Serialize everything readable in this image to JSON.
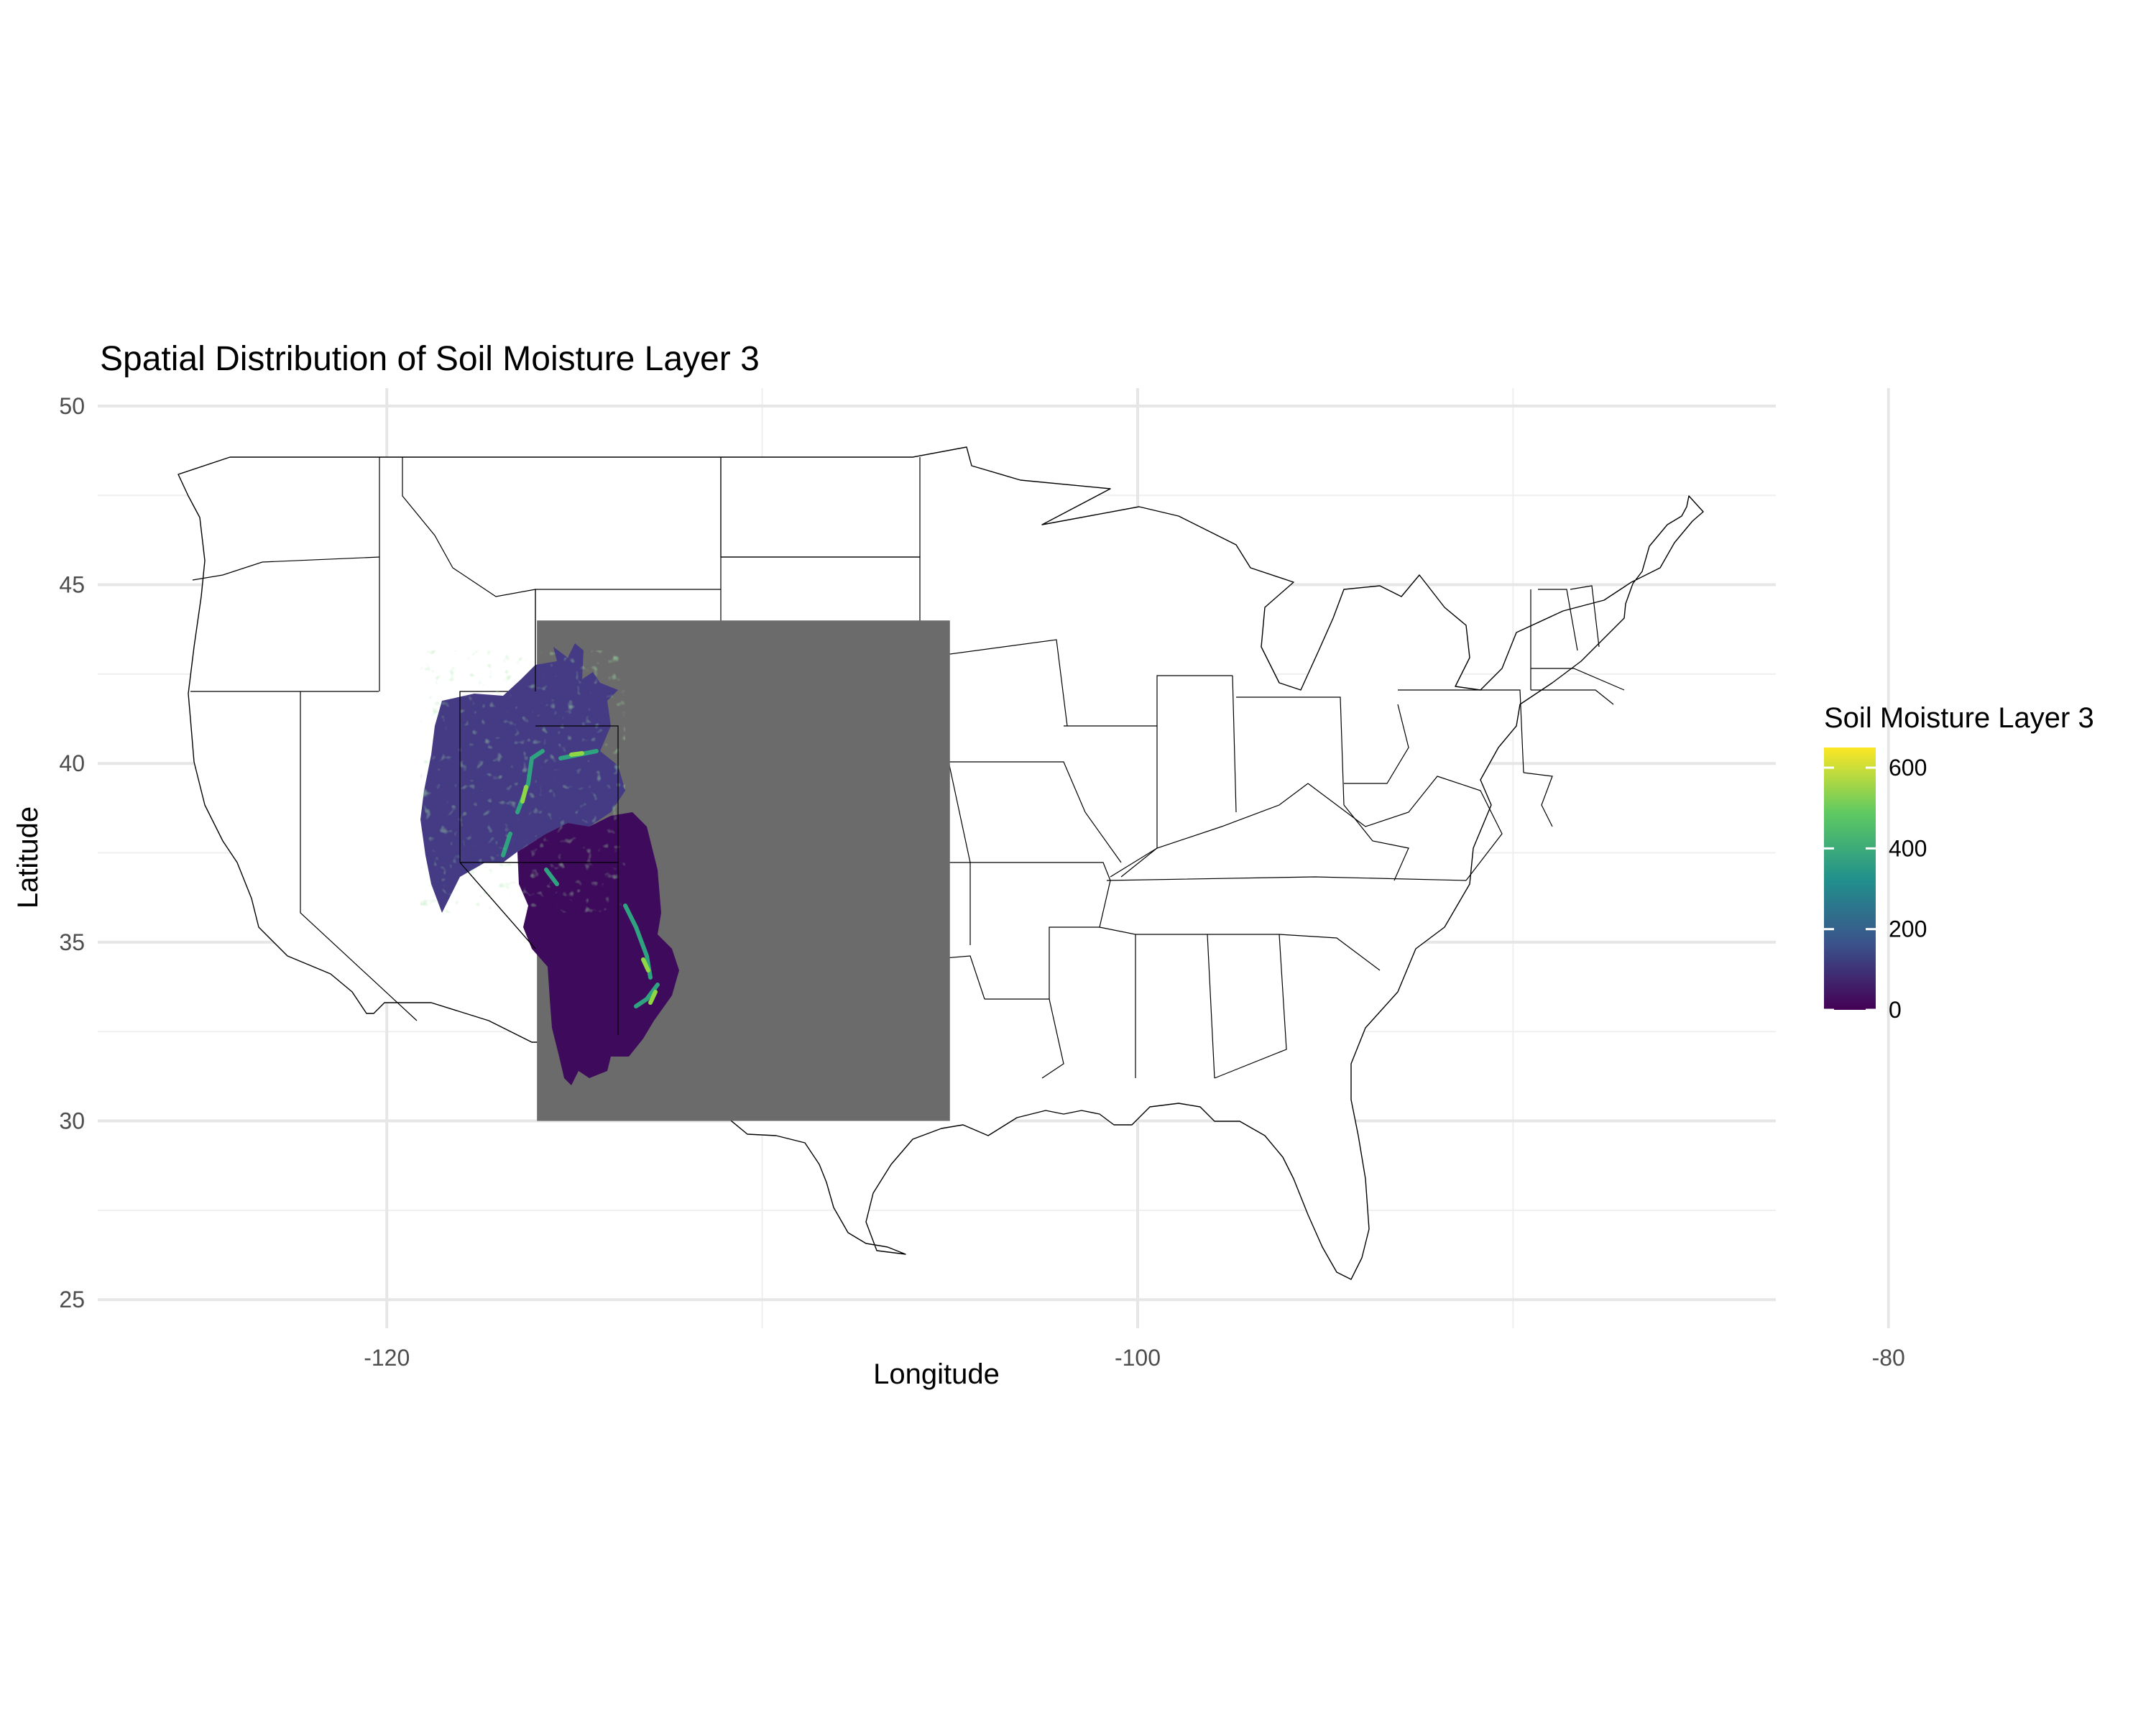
{
  "chart_data": {
    "type": "heatmap",
    "title": "Spatial Distribution of Soil Moisture Layer 3",
    "xlabel": "Longitude",
    "ylabel": "Latitude",
    "xlim": [
      -127.7,
      -83.0
    ],
    "ylim": [
      24.2,
      50.5
    ],
    "x_ticks": [
      -120,
      -100,
      -80
    ],
    "y_ticks": [
      25,
      30,
      35,
      40,
      45,
      50
    ],
    "x_minor": [
      -110,
      -90,
      -70
    ],
    "y_minor": [
      27.5,
      32.5,
      37.5,
      42.5,
      47.5
    ],
    "grid": true,
    "raster_extent": {
      "lon": [
        -116,
        -105
      ],
      "lat": [
        30,
        44
      ]
    },
    "raster_background": "#6b6b6b",
    "legend": {
      "title": "Soil Moisture Layer 3",
      "position": "right",
      "min": 0,
      "max": 650,
      "ticks": [
        0,
        200,
        400,
        600
      ],
      "colors": [
        "#440154",
        "#3b528b",
        "#21918c",
        "#5ec962",
        "#fde725"
      ]
    },
    "basemap": "United States state boundaries"
  }
}
